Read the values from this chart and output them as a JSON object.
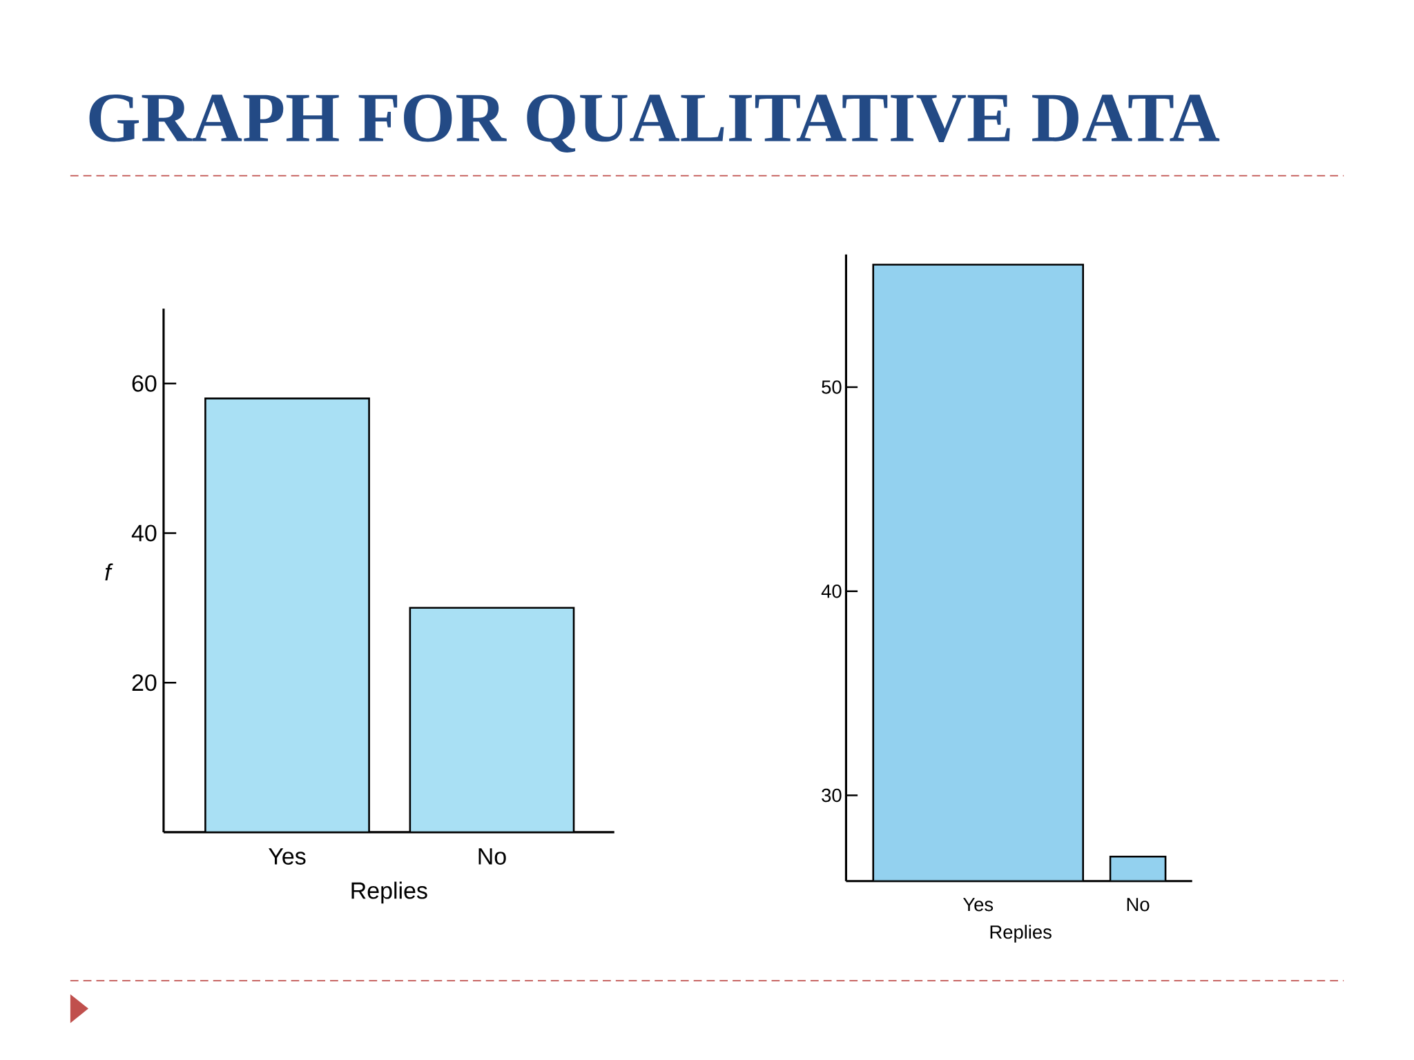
{
  "chart_data": [
    {
      "type": "bar",
      "title": "GRAPH FOR QUALITATIVE DATA",
      "xlabel": "Replies",
      "ylabel": "f",
      "categories": [
        "Yes",
        "No"
      ],
      "values": [
        58,
        30
      ],
      "color": "#a9e0f4",
      "ylim": [
        0,
        70
      ],
      "yticks": [
        20,
        40,
        60
      ]
    },
    {
      "type": "bar",
      "xlabel": "Replies",
      "categories": [
        "Yes",
        "No"
      ],
      "values": [
        56,
        27
      ],
      "color": "#93d1ef",
      "ylim": [
        25.8,
        56.5
      ],
      "yticks": [
        30,
        40,
        50
      ]
    }
  ]
}
